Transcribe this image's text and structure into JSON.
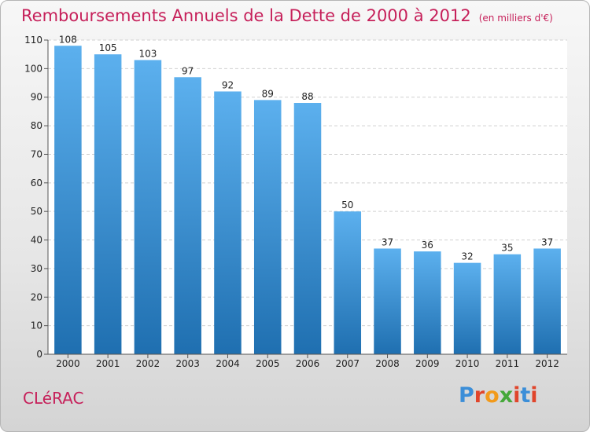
{
  "header": {
    "title": "Remboursements Annuels de la Dette de 2000 à 2012",
    "subtitle": "(en milliers d'€)"
  },
  "footer": {
    "commune": "CLéRAC",
    "logo_letters": [
      "P",
      "r",
      "o",
      "x",
      "i",
      "t",
      "i"
    ],
    "logo_colors": [
      "#3b8ed8",
      "#e0452b",
      "#f29a1b",
      "#45a83a",
      "#e0452b",
      "#3b8ed8",
      "#e0452b"
    ]
  },
  "chart_data": {
    "type": "bar",
    "title": "Remboursements Annuels de la Dette de 2000 à 2012",
    "subtitle": "(en milliers d'€)",
    "xlabel": "",
    "ylabel": "",
    "categories": [
      "2000",
      "2001",
      "2002",
      "2003",
      "2004",
      "2005",
      "2006",
      "2007",
      "2008",
      "2009",
      "2010",
      "2011",
      "2012"
    ],
    "values": [
      108,
      105,
      103,
      97,
      92,
      89,
      88,
      50,
      37,
      36,
      32,
      35,
      37
    ],
    "ylim": [
      0,
      110
    ],
    "yticks": [
      0,
      10,
      20,
      30,
      40,
      50,
      60,
      70,
      80,
      90,
      100,
      110
    ],
    "grid": true,
    "bar_color_top": "#5cb0ee",
    "bar_color_bottom": "#1f6fb0",
    "data_labels": true
  }
}
